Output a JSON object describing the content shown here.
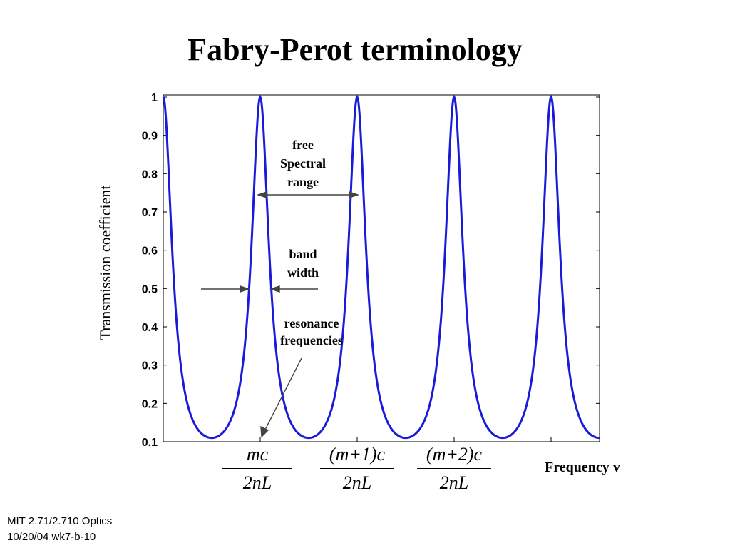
{
  "slide": {
    "title": "Fabry-Perot terminology",
    "footer_line1": "MIT 2.71/2.710 Optics",
    "footer_line2": "10/20/04 wk7-b-10"
  },
  "chart_data": {
    "type": "line",
    "ylabel": "Transmission coefficient",
    "xlabel": "Frequency v",
    "ylim": [
      0.1,
      1
    ],
    "yticks": [
      "0.1",
      "0.2",
      "0.3",
      "0.4",
      "0.5",
      "0.6",
      "0.7",
      "0.8",
      "0.9",
      "1"
    ],
    "ytick_values": [
      0.1,
      0.2,
      0.3,
      0.4,
      0.5,
      0.6,
      0.7,
      0.8,
      0.9,
      1
    ],
    "xlim": [
      0,
      4.5
    ],
    "xticks_fraction": [
      {
        "numerator": "mc",
        "denominator": "2nL",
        "value": 1
      },
      {
        "numerator": "(m+1)c",
        "denominator": "2nL",
        "value": 2
      },
      {
        "numerator": "(m+2)c",
        "denominator": "2nL",
        "value": 3
      }
    ],
    "tick_marks_x": [
      1,
      2,
      3,
      4
    ],
    "series": [
      {
        "peaks_at": [
          0,
          1,
          2,
          3,
          4
        ],
        "max": 1.0,
        "min": 0.11,
        "color": "#1a1adb"
      }
    ],
    "grid": false,
    "annotations": {
      "fsr": [
        "free",
        "Spectral",
        "range"
      ],
      "bandwidth": [
        "band",
        "width"
      ],
      "resonance": [
        "resonance",
        "frequencies"
      ]
    }
  }
}
